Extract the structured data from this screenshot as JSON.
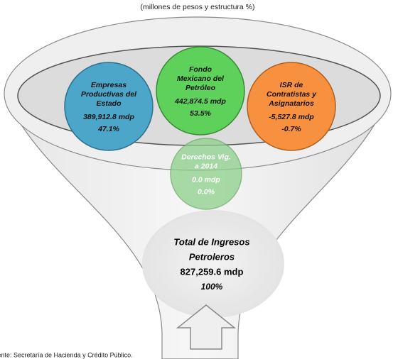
{
  "subtitle": "(millones de pesos y estructura %)",
  "items": [
    {
      "name": [
        "Empresas",
        "Productivas del",
        "Estado"
      ],
      "amount": "389,912.8  mdp",
      "share": "47.1%"
    },
    {
      "name": [
        "Fondo",
        "Mexicano del",
        "Petróleo"
      ],
      "amount": "442,874.5  mdp",
      "share": "53.5%"
    },
    {
      "name": [
        "ISR de",
        "Contratistas y",
        "Asignatarios"
      ],
      "amount": "-5,527.8 mdp",
      "share": "-0.7%"
    },
    {
      "name": [
        "Derechos Vig.",
        "a 2014"
      ],
      "amount": "0.0 mdp",
      "share": "0.0%"
    }
  ],
  "total": {
    "name": [
      "Total de Ingresos",
      "Petroleros"
    ],
    "amount": "827,259.6  mdp",
    "share": "100%"
  },
  "source": "Fuente: Secretaría de Hacienda y Crédito Público."
}
